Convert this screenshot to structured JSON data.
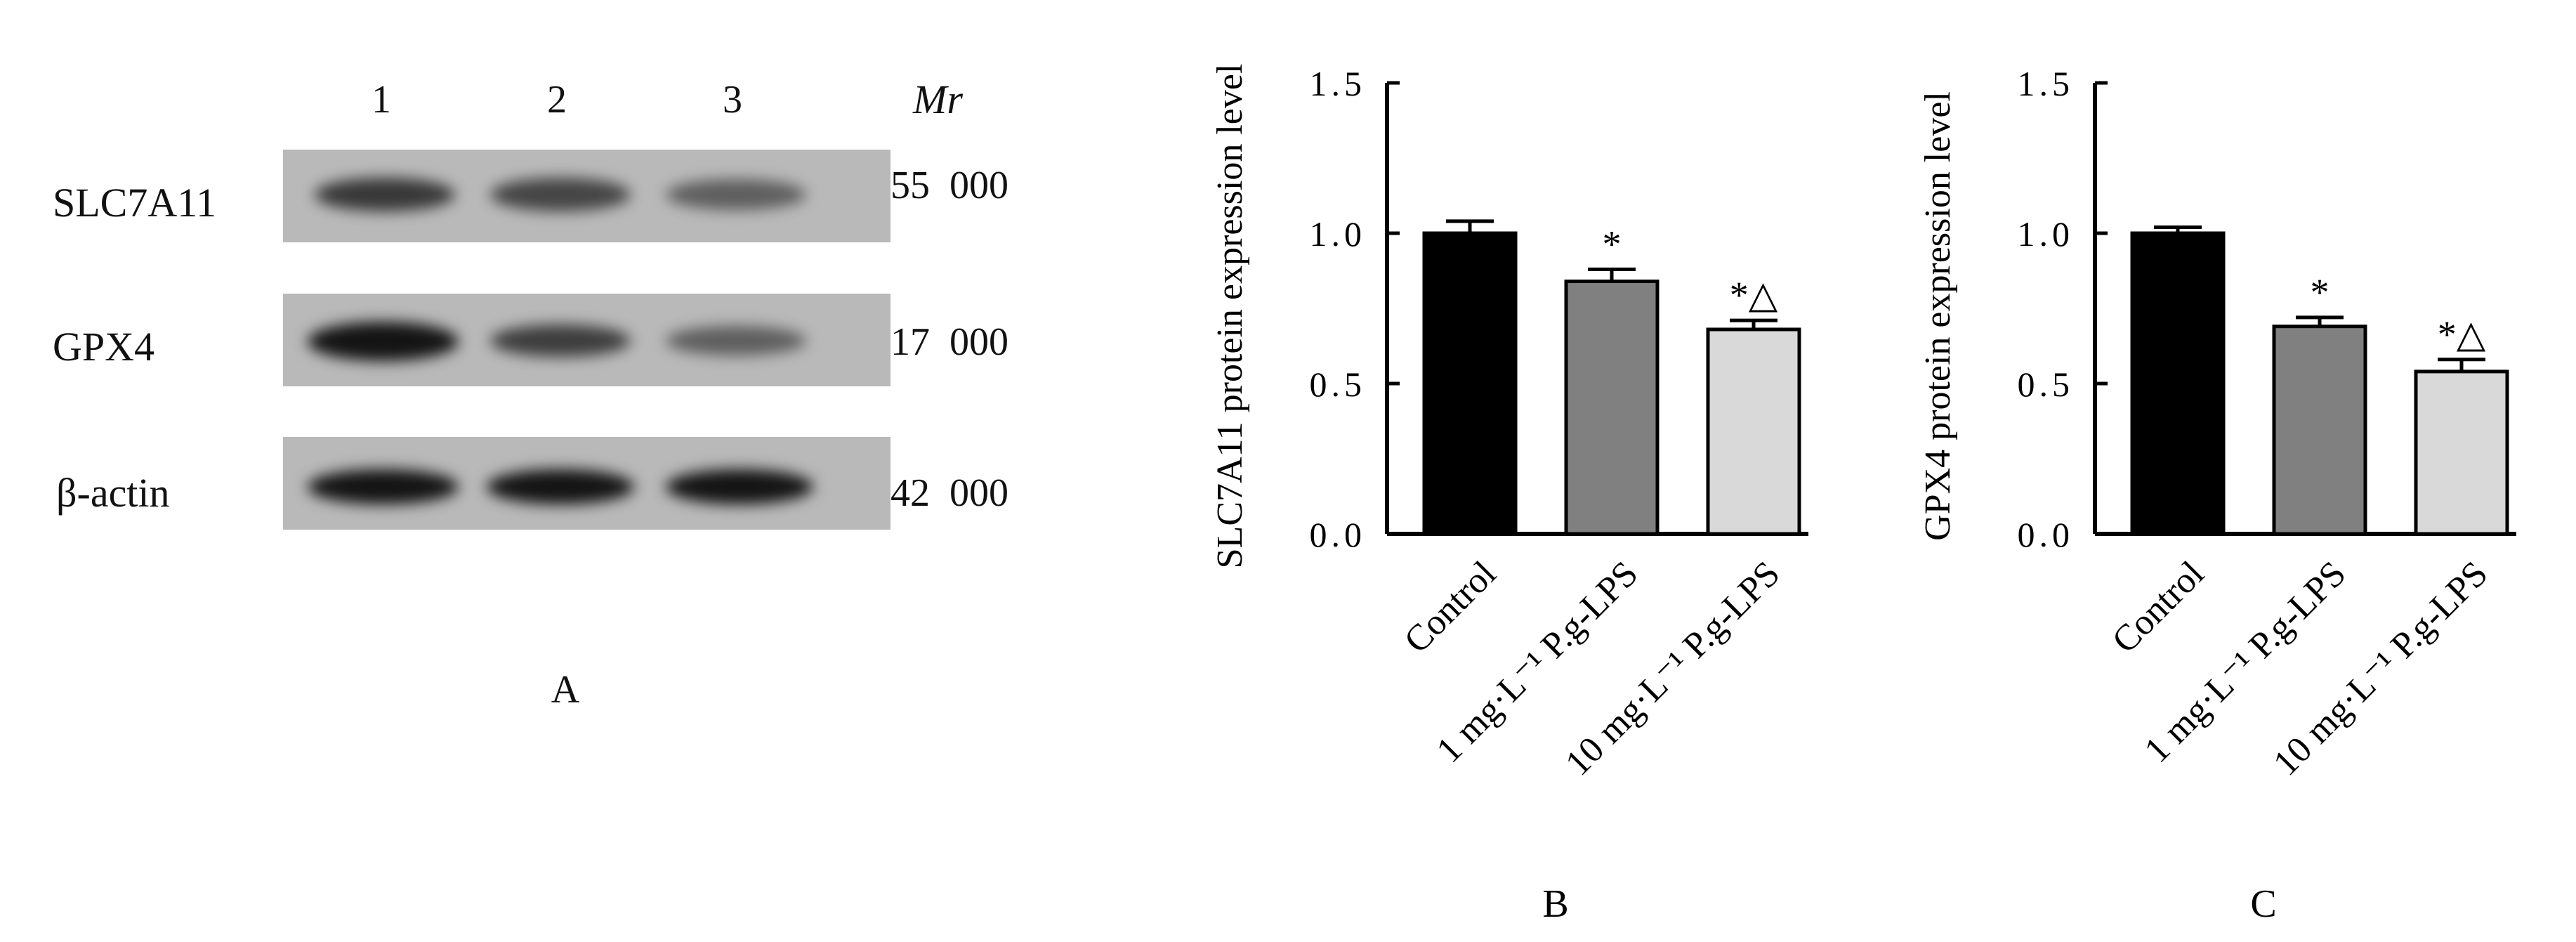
{
  "panel_a": {
    "letter": "A",
    "lanes": [
      "1",
      "2",
      "3"
    ],
    "mr_header": "Mr",
    "rows": [
      {
        "protein": "SLC7A11",
        "mr": "55  000",
        "band_intensity": [
          0.78,
          0.7,
          0.55
        ]
      },
      {
        "protein": "GPX4",
        "mr": "17  000",
        "band_intensity": [
          1.0,
          0.75,
          0.55
        ]
      },
      {
        "protein": "β-actin",
        "mr": "42  000",
        "band_intensity": [
          1.0,
          1.0,
          1.0
        ]
      }
    ],
    "colors": {
      "membrane": "#b9b9b9",
      "band": "#141414"
    }
  },
  "chart_data": [
    {
      "type": "bar",
      "panel": "B",
      "ylabel": "SLC7A11 protein expression level",
      "categories": [
        "Control",
        "1 mg·L⁻¹ P.g-LPS",
        "10 mg·L⁻¹ P.g-LPS"
      ],
      "values": [
        1.0,
        0.84,
        0.68
      ],
      "errors": [
        0.04,
        0.04,
        0.03
      ],
      "annotations": [
        "",
        "*",
        "*△"
      ],
      "colors": [
        "#000000",
        "#808080",
        "#d9d9d9"
      ],
      "ylim": [
        0,
        1.5
      ],
      "yticks": [
        "0.0",
        "0.5",
        "1.0",
        "1.5"
      ],
      "grid": false
    },
    {
      "type": "bar",
      "panel": "C",
      "ylabel": "GPX4  protein expression level",
      "categories": [
        "Control",
        "1 mg·L⁻¹ P.g-LPS",
        "10 mg·L⁻¹ P.g-LPS"
      ],
      "values": [
        1.0,
        0.69,
        0.54
      ],
      "errors": [
        0.02,
        0.03,
        0.04
      ],
      "annotations": [
        "",
        "*",
        "*△"
      ],
      "colors": [
        "#000000",
        "#808080",
        "#d9d9d9"
      ],
      "ylim": [
        0,
        1.5
      ],
      "yticks": [
        "0.0",
        "0.5",
        "1.0",
        "1.5"
      ],
      "grid": false
    }
  ]
}
